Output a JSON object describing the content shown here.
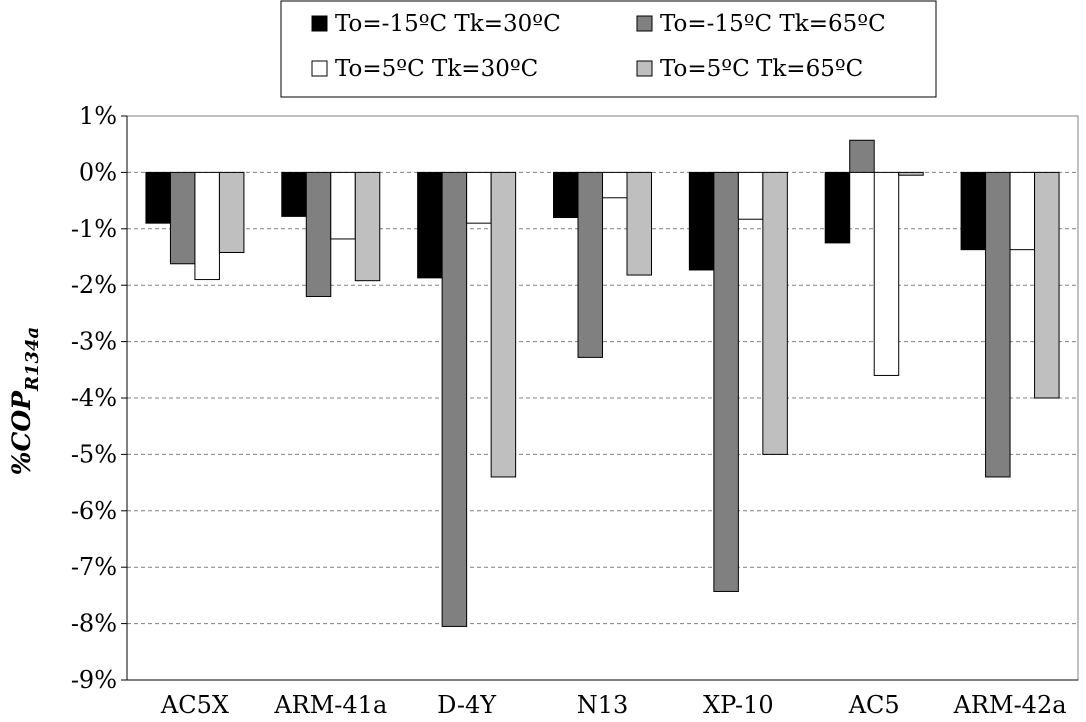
{
  "chart_data": {
    "type": "bar",
    "categories": [
      "AC5X",
      "ARM-41a",
      "D-4Y",
      "N13",
      "XP-10",
      "AC5",
      "ARM-42a"
    ],
    "series": [
      {
        "name": "To=-15ºC Tk=30ºC",
        "color": "#000000",
        "values": [
          -0.9,
          -0.78,
          -1.87,
          -0.8,
          -1.73,
          -1.25,
          -1.37
        ]
      },
      {
        "name": "To=-15ºC Tk=65ºC",
        "color": "#808080",
        "values": [
          -1.62,
          -2.2,
          -8.05,
          -3.28,
          -7.43,
          0.57,
          -5.4
        ]
      },
      {
        "name": "To=5ºC Tk=30ºC",
        "color": "#ffffff",
        "values": [
          -1.9,
          -1.18,
          -0.9,
          -0.45,
          -0.83,
          -3.6,
          -1.37
        ]
      },
      {
        "name": "To=5ºC Tk=65ºC",
        "color": "#bfbfbf",
        "values": [
          -1.42,
          -1.92,
          -5.4,
          -1.82,
          -5.0,
          -0.05,
          -4.0
        ]
      }
    ],
    "ylabel": "%COP",
    "ylabel_subscript": "R134a",
    "ylim": [
      -9,
      1
    ],
    "yticks": [
      1,
      0,
      -1,
      -2,
      -3,
      -4,
      -5,
      -6,
      -7,
      -8,
      -9
    ],
    "ytick_labels": [
      "1%",
      "0%",
      "-1%",
      "-2%",
      "-3%",
      "-4%",
      "-5%",
      "-6%",
      "-7%",
      "-8%",
      "-9%"
    ],
    "grid": "horizontal dashed",
    "legend_position": "top"
  }
}
